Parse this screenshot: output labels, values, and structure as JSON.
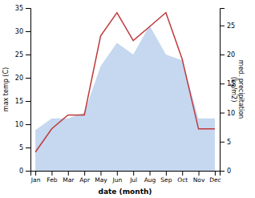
{
  "chart_data": {
    "type": "line",
    "xlabel": "date (month)",
    "ylabel": "max temp (C)",
    "y2label": "med. precipitation\n(kg/m2)",
    "categories": [
      "Jan",
      "Feb",
      "Mar",
      "Apr",
      "May",
      "Jun",
      "Jul",
      "Aug",
      "Sep",
      "Oct",
      "Nov",
      "Dec"
    ],
    "series": [
      {
        "type": "area",
        "axis": "y2",
        "color": "#c5d8f0",
        "values": [
          7,
          9,
          9,
          10,
          18,
          22,
          20,
          25,
          20,
          19,
          9,
          9
        ]
      },
      {
        "type": "line",
        "color": "#c0393b",
        "values": [
          4,
          9,
          12,
          12,
          29,
          34,
          28,
          31,
          34,
          24,
          9,
          9
        ]
      }
    ],
    "ylim": [
      0,
      35
    ],
    "yticks": [
      0,
      5,
      10,
      15,
      20,
      25,
      30,
      35
    ],
    "y2lim": [
      0,
      28
    ],
    "y2ticks": [
      0,
      5,
      10,
      15,
      20,
      25
    ],
    "grid": false
  }
}
